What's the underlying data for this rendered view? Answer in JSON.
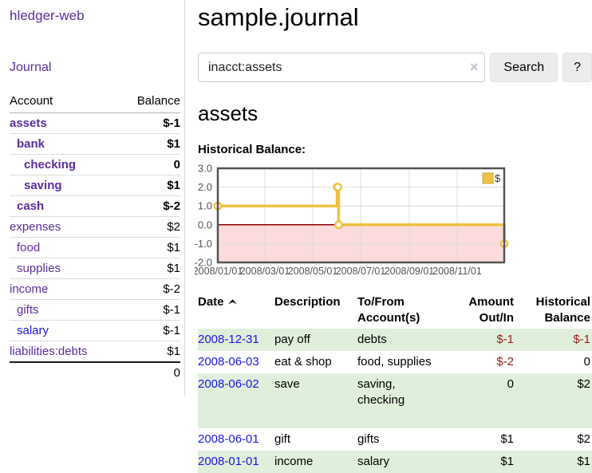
{
  "sidebar": {
    "app_title": "hledger-web",
    "journal_link": "Journal",
    "table": {
      "account_header": "Account",
      "balance_header": "Balance",
      "accounts": [
        {
          "name": "assets",
          "depth": 1,
          "balance": "$-1",
          "bold": true
        },
        {
          "name": "bank",
          "depth": 2,
          "balance": "$1",
          "bold": true
        },
        {
          "name": "checking",
          "depth": 3,
          "balance": "0",
          "bold": true
        },
        {
          "name": "saving",
          "depth": 3,
          "balance": "$1",
          "bold": true
        },
        {
          "name": "cash",
          "depth": 2,
          "balance": "$-2",
          "bold": true
        },
        {
          "name": "expenses",
          "depth": 1,
          "balance": "$2",
          "bold": false
        },
        {
          "name": "food",
          "depth": 2,
          "balance": "$1",
          "bold": false
        },
        {
          "name": "supplies",
          "depth": 2,
          "balance": "$1",
          "bold": false
        },
        {
          "name": "income",
          "depth": 1,
          "balance": "$-2",
          "bold": false
        },
        {
          "name": "gifts",
          "depth": 2,
          "balance": "$-1",
          "bold": false
        },
        {
          "name": "salary",
          "depth": 2,
          "balance": "$-1",
          "bold": false,
          "link_color": "blue"
        },
        {
          "name": "liabilities:debts",
          "depth": 1,
          "balance": "$1",
          "bold": false
        }
      ],
      "total": "0"
    }
  },
  "main": {
    "title": "sample.journal",
    "account_heading": "assets",
    "chart_label": "Historical Balance:"
  },
  "search": {
    "value": "inacct:assets",
    "clear_icon": "×",
    "button_label": "Search",
    "help_label": "?"
  },
  "chart_data": {
    "type": "line",
    "step": true,
    "title": "Historical Balance:",
    "series": [
      {
        "name": "$",
        "color": "#edc240",
        "points": [
          [
            "2008-01-01",
            1
          ],
          [
            "2008-06-01",
            2
          ],
          [
            "2008-06-02",
            2
          ],
          [
            "2008-06-03",
            0
          ],
          [
            "2008-12-31",
            -1
          ]
        ]
      }
    ],
    "x_range": [
      "2008-01-01",
      "2008-12-31"
    ],
    "x_tick_labels": [
      "2008/01/01",
      "2008/03/01",
      "2008/05/01",
      "2008/07/01",
      "2008/09/01",
      "2008/11/01"
    ],
    "y_tick_labels": [
      "3.0",
      "2.0",
      "1.0",
      "0.0",
      "-1.0",
      "-2.0"
    ],
    "ylim": [
      -2,
      3
    ],
    "grid": true,
    "legend_position": "top-right",
    "colors": {
      "grid_line": "#dcdcdc",
      "zero_line": "#8b0000",
      "negative_region": "#fbdbdb",
      "plot_border": "#545454",
      "axis_text": "#545454"
    }
  },
  "register": {
    "columns": [
      "Date",
      "Description",
      "To/From Account(s)",
      "Amount Out/In",
      "Historical Balance"
    ],
    "date_sort_icon": "chevron-up",
    "rows": [
      {
        "date": "2008-12-31",
        "description": "pay off",
        "accounts": "debts",
        "amount": "$-1",
        "balance": "$-1"
      },
      {
        "date": "2008-06-03",
        "description": "eat & shop",
        "accounts": "food, supplies",
        "amount": "$-2",
        "balance": "0"
      },
      {
        "date": "2008-06-02",
        "description": "save",
        "accounts": "saving, checking",
        "amount": "0",
        "balance": "$2"
      },
      {
        "date": "2008-06-01",
        "description": "gift",
        "accounts": "gifts",
        "amount": "$1",
        "balance": "$2"
      },
      {
        "date": "2008-01-01",
        "description": "income",
        "accounts": "salary",
        "amount": "$1",
        "balance": "$1"
      }
    ]
  }
}
